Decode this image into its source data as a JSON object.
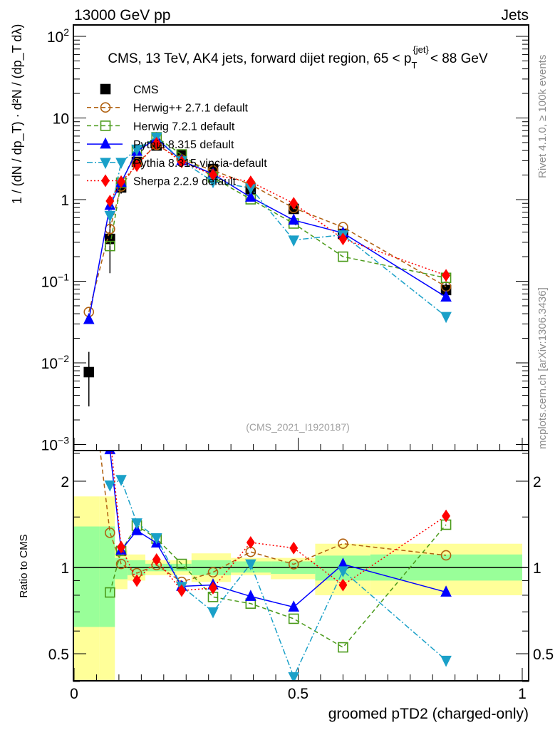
{
  "header": {
    "left": "13000 GeV pp",
    "right": "Jets"
  },
  "side_labels": {
    "rivet": "Rivet 4.1.0, ≥ 100k events",
    "mcplots": "mcplots.cern.ch [arXiv:1306.3436]"
  },
  "chart_data": {
    "type": "line",
    "title_parts": {
      "pre": "CMS, 13 TeV, AK4 jets, forward dijet region, 65 < p",
      "sub": "T",
      "sup": "{jet}",
      "post": "< 88 GeV"
    },
    "ylabel": "1 / (dN / dp_T) · d²N / (dp_T dλ)",
    "xlabel": "groomed pTD2 (charged-only)",
    "ratio_ylabel": "Ratio to CMS",
    "watermark": "(CMS_2021_I1920187)",
    "xlim": [
      0,
      1
    ],
    "ylim": [
      0.00085,
      138
    ],
    "yscale": "log",
    "ratio_ylim": [
      0.4,
      2.56
    ],
    "x_ticks": [
      {
        "v": 0,
        "label": "0"
      },
      {
        "v": 0.5,
        "label": "0.5"
      },
      {
        "v": 1,
        "label": "1"
      }
    ],
    "y_ticks": [
      {
        "v": 0.001,
        "base": "10",
        "exp": "−3"
      },
      {
        "v": 0.01,
        "base": "10",
        "exp": "−2"
      },
      {
        "v": 0.1,
        "base": "10",
        "exp": "−1"
      },
      {
        "v": 1,
        "base": "1",
        "exp": ""
      },
      {
        "v": 10,
        "base": "10",
        "exp": ""
      },
      {
        "v": 100,
        "base": "10",
        "exp": "2"
      }
    ],
    "ratio_ticks": [
      {
        "v": 0.5,
        "label": "0.5"
      },
      {
        "v": 1,
        "label": "1"
      },
      {
        "v": 2,
        "label": "2"
      }
    ],
    "bin_edges": [
      0,
      0.057,
      0.091,
      0.119,
      0.159,
      0.204,
      0.262,
      0.35,
      0.439,
      0.538,
      0.661,
      1.0
    ],
    "x": [
      0.033,
      0.08,
      0.105,
      0.14,
      0.184,
      0.24,
      0.31,
      0.394,
      0.49,
      0.6,
      0.83
    ],
    "reference_band": {
      "yellow": [
        [
          0.38,
          1.77
        ],
        [
          0.38,
          1.77
        ],
        [
          0.84,
          1.15
        ],
        [
          0.9,
          1.11
        ],
        [
          0.94,
          1.06
        ],
        [
          0.94,
          1.06
        ],
        [
          0.89,
          1.12
        ],
        [
          0.94,
          1.08
        ],
        [
          0.91,
          1.08
        ],
        [
          0.8,
          1.21
        ],
        [
          0.8,
          1.21
        ]
      ],
      "green": [
        [
          0.62,
          1.39
        ],
        [
          0.62,
          1.39
        ],
        [
          0.91,
          1.08
        ],
        [
          0.94,
          1.06
        ],
        [
          0.97,
          1.03
        ],
        [
          0.97,
          1.03
        ],
        [
          0.94,
          1.06
        ],
        [
          0.96,
          1.05
        ],
        [
          0.95,
          1.05
        ],
        [
          0.9,
          1.1
        ],
        [
          0.9,
          1.11
        ]
      ]
    },
    "series": [
      {
        "name": "CMS",
        "color": "#000000",
        "dash": "",
        "marker": "filled-square",
        "values": [
          0.0077,
          0.33,
          1.41,
          2.9,
          4.6,
          3.48,
          2.37,
          1.35,
          0.77,
          0.38,
          0.078
        ]
      },
      {
        "name": "Herwig++ 2.7.1 default",
        "color": "#b0600f",
        "dash": "6,4",
        "marker": "open-circle",
        "values": [
          0.042,
          0.436,
          1.45,
          2.77,
          4.69,
          3.1,
          2.28,
          1.53,
          0.79,
          0.46,
          0.086
        ]
      },
      {
        "name": "Herwig 7.2.1 default",
        "color": "#4a9a1a",
        "dash": "6,4",
        "marker": "open-square",
        "values": [
          null,
          0.27,
          1.61,
          4.06,
          5.8,
          3.58,
          1.87,
          1.01,
          0.51,
          0.2,
          0.11
        ]
      },
      {
        "name": "Pythia 8.315 default",
        "color": "#0000ff",
        "dash": "",
        "marker": "triangle-up",
        "values": [
          0.034,
          0.85,
          1.62,
          3.9,
          5.6,
          2.99,
          2.06,
          1.07,
          0.56,
          0.39,
          0.064
        ]
      },
      {
        "name": "Pythia 8.315 vincia-default",
        "color": "#1aa0c8",
        "dash": "8,3,2,3",
        "marker": "triangle-down",
        "values": [
          null,
          0.64,
          2.86,
          4.15,
          5.84,
          2.99,
          1.66,
          1.39,
          0.32,
          0.37,
          0.037
        ]
      },
      {
        "name": "Sherpa 2.2.9 default",
        "color": "#ff0000",
        "dash": "2,3",
        "marker": "diamond",
        "values": [
          null,
          0.96,
          1.66,
          2.61,
          4.9,
          2.89,
          2.01,
          1.65,
          0.9,
          0.33,
          0.118
        ]
      }
    ],
    "legend_position": "top-left"
  }
}
